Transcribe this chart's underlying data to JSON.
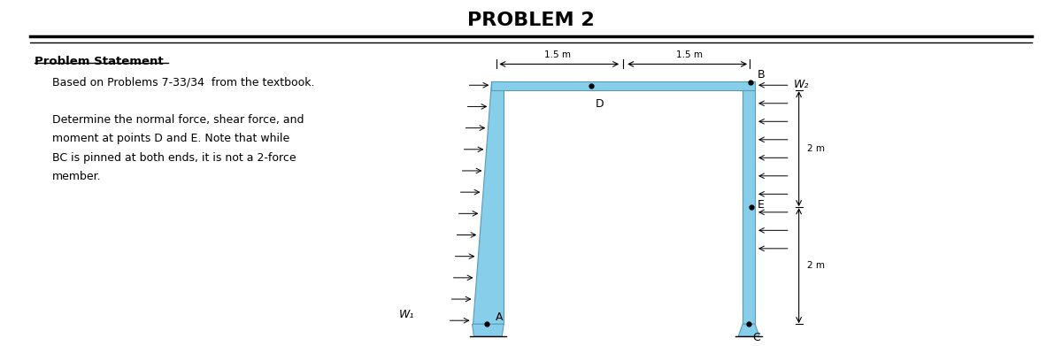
{
  "title": "PROBLEM 2",
  "title_fontsize": 16,
  "title_fontweight": "bold",
  "bg_color": "#ffffff",
  "struct_color": "#87CEEB",
  "struct_edge_color": "#5a9ab5",
  "text_color": "#000000",
  "problem_statement_title": "Problem Statement",
  "problem_statement_lines": [
    "Based on Problems 7-33/34  from the textbook.",
    "",
    "Determine the normal force, shear force, and",
    "moment at points D and E. Note that while",
    "BC is pinned at both ends, it is not a 2-force",
    "member."
  ],
  "dim_15m_left": "1.5 m",
  "dim_15m_right": "1.5 m",
  "dim_2m_upper": "2 m",
  "dim_2m_lower": "2 m",
  "label_A": "A",
  "label_B": "B",
  "label_C": "C",
  "label_D": "D",
  "label_E": "E",
  "label_W1": "W₁",
  "label_W2": "W₂"
}
